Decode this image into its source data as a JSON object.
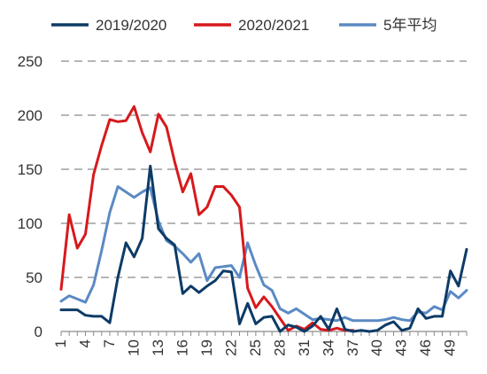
{
  "chart_data": {
    "type": "line",
    "x": [
      1,
      2,
      3,
      4,
      5,
      6,
      7,
      8,
      9,
      10,
      11,
      12,
      13,
      14,
      15,
      16,
      17,
      18,
      19,
      20,
      21,
      22,
      23,
      24,
      25,
      26,
      27,
      28,
      29,
      30,
      31,
      32,
      33,
      34,
      35,
      36,
      37,
      38,
      39,
      40,
      41,
      42,
      43,
      44,
      45,
      46,
      47,
      48,
      49,
      50,
      51
    ],
    "x_tick_labels": [
      "1",
      "4",
      "7",
      "10",
      "13",
      "16",
      "19",
      "22",
      "25",
      "28",
      "31",
      "34",
      "37",
      "40",
      "43",
      "46",
      "49"
    ],
    "ylim": [
      0,
      250
    ],
    "y_ticks": [
      "0",
      "50",
      "100",
      "150",
      "200",
      "250"
    ],
    "grid": "horizontal-dashed",
    "legend_position": "top",
    "series": [
      {
        "name": "2019/2020",
        "color": "#0d3b66",
        "values": [
          20,
          20,
          20,
          15,
          14,
          14,
          8,
          50,
          82,
          69,
          86,
          153,
          95,
          86,
          80,
          35,
          42,
          36,
          42,
          47,
          56,
          55,
          7,
          26,
          7,
          13,
          14,
          0,
          6,
          4,
          0,
          5,
          14,
          2,
          21,
          2,
          0,
          1,
          0,
          1,
          6,
          9,
          1,
          3,
          21,
          12,
          14,
          14,
          56,
          42,
          76
        ]
      },
      {
        "name": "2020/2021",
        "color": "#d7191c",
        "values": [
          39,
          108,
          77,
          90,
          145,
          172,
          196,
          194,
          195,
          208,
          184,
          166,
          201,
          189,
          157,
          129,
          146,
          108,
          115,
          134,
          134,
          126,
          115,
          40,
          22,
          32,
          23,
          12,
          1,
          5,
          2,
          8,
          2,
          1,
          3,
          1,
          1,
          null,
          null,
          null,
          null,
          null,
          null,
          null,
          null,
          null,
          null,
          null,
          null,
          null,
          null
        ]
      },
      {
        "name": "5年平均",
        "color": "#5b8ac4",
        "values": [
          28,
          33,
          30,
          27,
          43,
          75,
          110,
          134,
          129,
          124,
          129,
          133,
          102,
          84,
          79,
          72,
          64,
          72,
          47,
          59,
          60,
          61,
          50,
          82,
          61,
          43,
          38,
          21,
          17,
          21,
          16,
          11,
          12,
          11,
          10,
          13,
          10,
          10,
          10,
          10,
          11,
          13,
          11,
          10,
          18,
          17,
          23,
          20,
          37,
          31,
          38
        ]
      }
    ]
  }
}
